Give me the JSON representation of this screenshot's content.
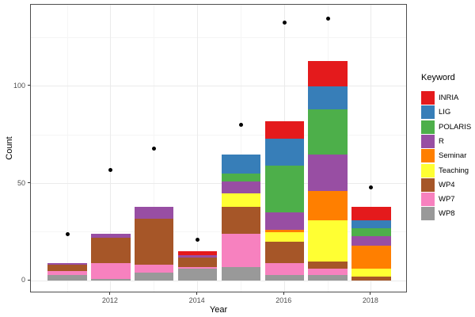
{
  "figure": {
    "background": "#ffffff",
    "panel_border": "#4d4d4d",
    "major_grid_color": "#ebebeb",
    "minor_grid_color": "#f5f5f5",
    "tick_color": "#333333",
    "tick_label_color": "#4d4d4d"
  },
  "chart_data": {
    "type": "bar",
    "stacked": true,
    "title": "",
    "xlabel": "Year",
    "ylabel": "Count",
    "legend_title": "Keyword",
    "legend_position": "right",
    "grid": true,
    "categories": [
      2011,
      2012,
      2013,
      2014,
      2015,
      2016,
      2017,
      2018
    ],
    "series": [
      {
        "name": "INRIA",
        "color": "#e41a1c",
        "values": [
          0,
          0,
          0,
          2,
          0,
          9,
          13,
          7
        ]
      },
      {
        "name": "LIG",
        "color": "#377eb8",
        "values": [
          0,
          0,
          0,
          0,
          10,
          14,
          12,
          4
        ]
      },
      {
        "name": "POLARIS",
        "color": "#4daf4a",
        "values": [
          0,
          0,
          0,
          0,
          4,
          24,
          23,
          4
        ]
      },
      {
        "name": "R",
        "color": "#984ea3",
        "values": [
          1,
          2,
          6,
          1,
          6,
          9,
          19,
          5
        ]
      },
      {
        "name": "Seminar",
        "color": "#ff7f00",
        "values": [
          0,
          0,
          0,
          0,
          0,
          1,
          15,
          12
        ]
      },
      {
        "name": "Teaching",
        "color": "#ffff33",
        "values": [
          0,
          0,
          0,
          0,
          7,
          5,
          21,
          4
        ]
      },
      {
        "name": "WP4",
        "color": "#a65628",
        "values": [
          3,
          13,
          24,
          5,
          14,
          11,
          4,
          2
        ]
      },
      {
        "name": "WP7",
        "color": "#f781bf",
        "values": [
          2,
          8,
          4,
          1,
          17,
          6,
          3,
          0
        ]
      },
      {
        "name": "WP8",
        "color": "#999999",
        "values": [
          3,
          1,
          4,
          6,
          7,
          3,
          3,
          0
        ]
      }
    ],
    "stack_totals": [
      9,
      24,
      38,
      15,
      65,
      82,
      113,
      38
    ],
    "points": {
      "color": "#000000",
      "values": [
        24,
        57,
        68,
        21,
        80,
        133,
        135,
        48
      ]
    },
    "x_ticks": [
      2012,
      2014,
      2016,
      2018
    ],
    "x_minor_ticks": [
      2011,
      2013,
      2015,
      2017
    ],
    "y_ticks": [
      0,
      50,
      100
    ],
    "y_minor_ticks": [
      25,
      75,
      125
    ],
    "xlim": [
      2010.16,
      2018.84
    ],
    "ylim": [
      -6.5,
      142
    ],
    "bar_width": 0.9
  }
}
